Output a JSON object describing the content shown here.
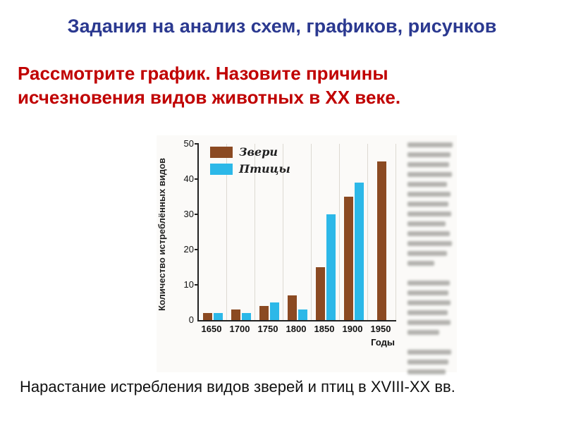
{
  "slide": {
    "title": "Задания на анализ схем, графиков, рисунков",
    "question": "Рассмотрите график. Назовите причины исчезновения видов животных в XX веке.",
    "caption": "Нарастание истребления видов зверей и птиц в XVIII-XX вв.",
    "colors": {
      "title_text": "#2b3990",
      "question_text": "#c00000",
      "caption_text": "#111111",
      "animals_bar": "#8b4a22",
      "birds_bar": "#2cb8e8"
    }
  },
  "chart_data": {
    "type": "bar",
    "title": "",
    "categories": [
      "1650",
      "1700",
      "1750",
      "1800",
      "1850",
      "1900",
      "1950"
    ],
    "series": [
      {
        "id": "animals",
        "name": "Звери",
        "color": "#8b4a22",
        "values": [
          2,
          3,
          4,
          7,
          15,
          35,
          45
        ]
      },
      {
        "id": "birds",
        "name": "Птицы",
        "color": "#2cb8e8",
        "values": [
          2,
          2,
          5,
          3,
          30,
          39,
          null
        ]
      }
    ],
    "xlabel": "Годы",
    "ylabel": "Количество истреблённых видов",
    "ylim": [
      0,
      50
    ],
    "yticks": [
      0,
      10,
      20,
      30,
      40,
      50
    ],
    "legend_position": "top-left",
    "grid": true
  }
}
